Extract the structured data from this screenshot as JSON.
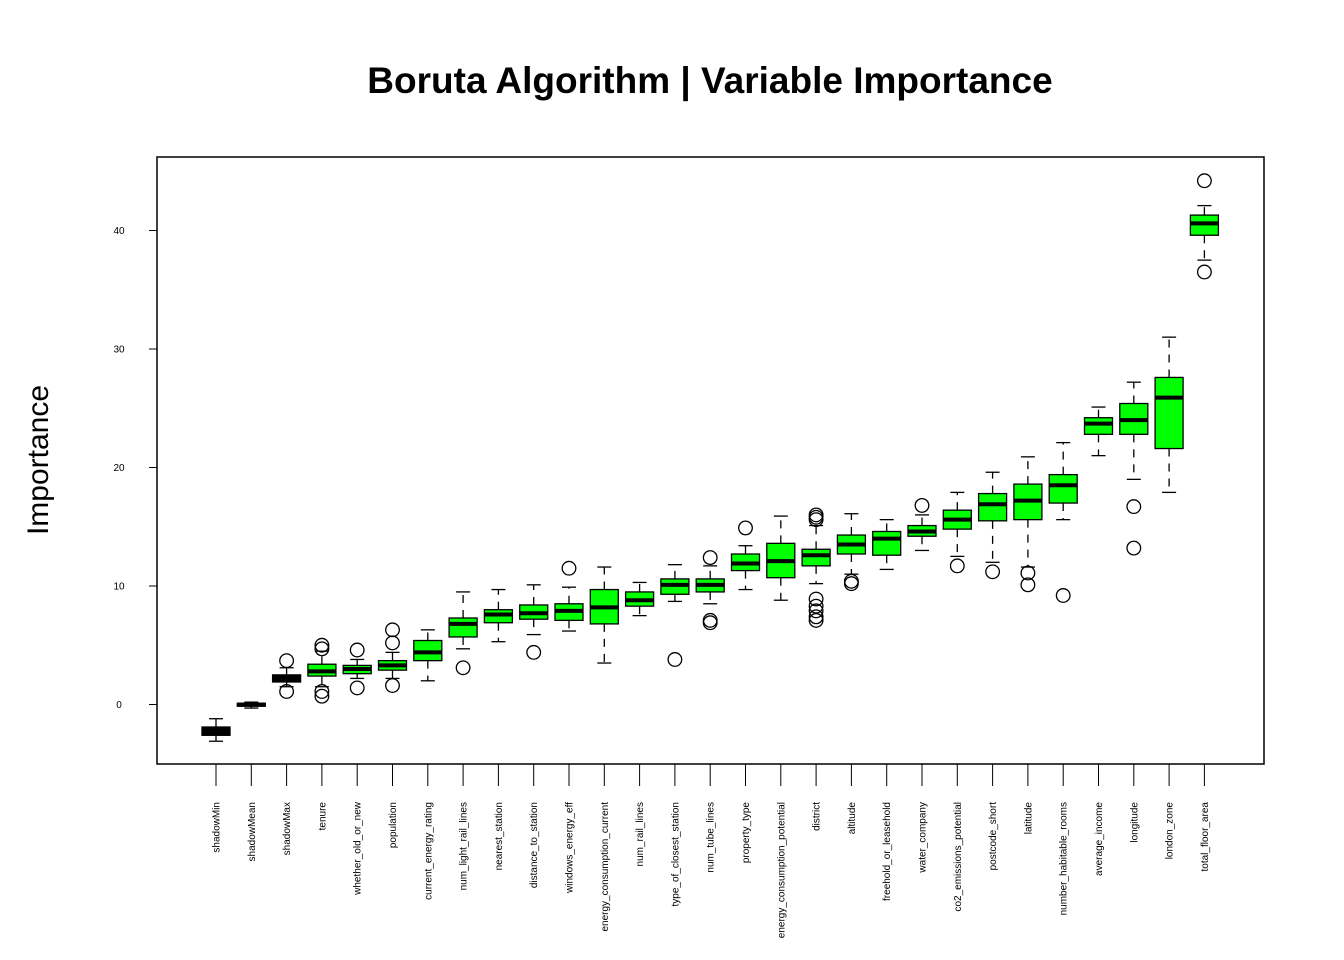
{
  "chart_data": {
    "type": "boxplot",
    "title": "Boruta Algorithm | Variable Importance",
    "xlabel": "",
    "ylabel": "Importance",
    "ylim": [
      -5,
      45
    ],
    "yticks": [
      0,
      10,
      20,
      30,
      40
    ],
    "grid": false,
    "legend": "none",
    "colors": {
      "confirmed": "#00ff00",
      "shadow": "#000000"
    },
    "boxes": [
      {
        "name": "shadowMin",
        "whisker_low": -3.1,
        "q1": -2.6,
        "median": -2.2,
        "q3": -1.9,
        "whisker_high": -1.2,
        "outliers": [],
        "kind": "shadow"
      },
      {
        "name": "shadowMean",
        "whisker_low": -0.3,
        "q1": -0.15,
        "median": 0.0,
        "q3": 0.1,
        "whisker_high": 0.2,
        "outliers": [],
        "kind": "shadow"
      },
      {
        "name": "shadowMax",
        "whisker_low": 1.5,
        "q1": 1.9,
        "median": 2.2,
        "q3": 2.5,
        "whisker_high": 3.1,
        "outliers": [
          3.7,
          1.1
        ],
        "kind": "shadow"
      },
      {
        "name": "tenure",
        "whisker_low": 1.5,
        "q1": 2.4,
        "median": 2.8,
        "q3": 3.4,
        "whisker_high": 4.5,
        "outliers": [
          5.0,
          4.7,
          1.1,
          0.7
        ],
        "kind": "confirmed"
      },
      {
        "name": "whether_old_or_new",
        "whisker_low": 2.2,
        "q1": 2.6,
        "median": 3.0,
        "q3": 3.3,
        "whisker_high": 3.8,
        "outliers": [
          4.6,
          1.4
        ],
        "kind": "confirmed"
      },
      {
        "name": "population",
        "whisker_low": 2.2,
        "q1": 2.9,
        "median": 3.3,
        "q3": 3.7,
        "whisker_high": 4.4,
        "outliers": [
          6.3,
          5.2,
          1.6
        ],
        "kind": "confirmed"
      },
      {
        "name": "current_energy_rating",
        "whisker_low": 2.0,
        "q1": 3.7,
        "median": 4.4,
        "q3": 5.4,
        "whisker_high": 6.3,
        "outliers": [],
        "kind": "confirmed"
      },
      {
        "name": "num_light_rail_lines",
        "whisker_low": 4.7,
        "q1": 5.7,
        "median": 6.8,
        "q3": 7.3,
        "whisker_high": 9.5,
        "outliers": [
          3.1
        ],
        "kind": "confirmed"
      },
      {
        "name": "nearest_station",
        "whisker_low": 5.3,
        "q1": 6.9,
        "median": 7.6,
        "q3": 8.0,
        "whisker_high": 9.7,
        "outliers": [],
        "kind": "confirmed"
      },
      {
        "name": "distance_to_station",
        "whisker_low": 5.9,
        "q1": 7.2,
        "median": 7.7,
        "q3": 8.4,
        "whisker_high": 10.1,
        "outliers": [
          4.4
        ],
        "kind": "confirmed"
      },
      {
        "name": "windows_energy_eff",
        "whisker_low": 6.2,
        "q1": 7.1,
        "median": 7.9,
        "q3": 8.5,
        "whisker_high": 9.9,
        "outliers": [
          11.5
        ],
        "kind": "confirmed"
      },
      {
        "name": "energy_consumption_current",
        "whisker_low": 3.5,
        "q1": 6.8,
        "median": 8.2,
        "q3": 9.7,
        "whisker_high": 11.6,
        "outliers": [],
        "kind": "confirmed"
      },
      {
        "name": "num_rail_lines",
        "whisker_low": 7.5,
        "q1": 8.3,
        "median": 8.8,
        "q3": 9.5,
        "whisker_high": 10.3,
        "outliers": [],
        "kind": "confirmed"
      },
      {
        "name": "type_of_closest_station",
        "whisker_low": 8.7,
        "q1": 9.3,
        "median": 10.1,
        "q3": 10.6,
        "whisker_high": 11.8,
        "outliers": [
          3.8
        ],
        "kind": "confirmed"
      },
      {
        "name": "num_tube_lines",
        "whisker_low": 8.5,
        "q1": 9.5,
        "median": 10.1,
        "q3": 10.6,
        "whisker_high": 11.7,
        "outliers": [
          12.4,
          7.1,
          6.9
        ],
        "kind": "confirmed"
      },
      {
        "name": "property_type",
        "whisker_low": 9.7,
        "q1": 11.3,
        "median": 11.9,
        "q3": 12.7,
        "whisker_high": 13.4,
        "outliers": [
          14.9
        ],
        "kind": "confirmed"
      },
      {
        "name": "energy_consumption_potential",
        "whisker_low": 8.8,
        "q1": 10.7,
        "median": 12.1,
        "q3": 13.6,
        "whisker_high": 15.9,
        "outliers": [],
        "kind": "confirmed"
      },
      {
        "name": "district",
        "whisker_low": 10.2,
        "q1": 11.7,
        "median": 12.6,
        "q3": 13.1,
        "whisker_high": 15.1,
        "outliers": [
          16.0,
          15.8,
          15.6,
          8.9,
          8.3,
          7.9,
          7.4,
          7.1
        ],
        "kind": "confirmed"
      },
      {
        "name": "altitude",
        "whisker_low": 11.0,
        "q1": 12.7,
        "median": 13.5,
        "q3": 14.3,
        "whisker_high": 16.1,
        "outliers": [
          10.4,
          10.2
        ],
        "kind": "confirmed"
      },
      {
        "name": "freehold_or_leasehold",
        "whisker_low": 11.4,
        "q1": 12.6,
        "median": 14.0,
        "q3": 14.6,
        "whisker_high": 15.6,
        "outliers": [],
        "kind": "confirmed"
      },
      {
        "name": "water_company",
        "whisker_low": 13.0,
        "q1": 14.2,
        "median": 14.6,
        "q3": 15.1,
        "whisker_high": 16.0,
        "outliers": [
          16.8
        ],
        "kind": "confirmed"
      },
      {
        "name": "co2_emissions_potential",
        "whisker_low": 12.5,
        "q1": 14.8,
        "median": 15.6,
        "q3": 16.4,
        "whisker_high": 17.9,
        "outliers": [
          11.7
        ],
        "kind": "confirmed"
      },
      {
        "name": "postcode_short",
        "whisker_low": 12.0,
        "q1": 15.5,
        "median": 16.9,
        "q3": 17.8,
        "whisker_high": 19.6,
        "outliers": [
          11.2
        ],
        "kind": "confirmed"
      },
      {
        "name": "latitude",
        "whisker_low": 11.6,
        "q1": 15.6,
        "median": 17.2,
        "q3": 18.6,
        "whisker_high": 20.9,
        "outliers": [
          11.1,
          10.1
        ],
        "kind": "confirmed"
      },
      {
        "name": "number_habitable_rooms",
        "whisker_low": 15.6,
        "q1": 17.0,
        "median": 18.5,
        "q3": 19.4,
        "whisker_high": 22.1,
        "outliers": [
          9.2
        ],
        "kind": "confirmed"
      },
      {
        "name": "average_income",
        "whisker_low": 21.0,
        "q1": 22.8,
        "median": 23.7,
        "q3": 24.2,
        "whisker_high": 25.1,
        "outliers": [],
        "kind": "confirmed"
      },
      {
        "name": "longitude",
        "whisker_low": 19.0,
        "q1": 22.8,
        "median": 24.0,
        "q3": 25.4,
        "whisker_high": 27.2,
        "outliers": [
          16.7,
          13.2
        ],
        "kind": "confirmed"
      },
      {
        "name": "london_zone",
        "whisker_low": 17.9,
        "q1": 21.6,
        "median": 25.9,
        "q3": 27.6,
        "whisker_high": 31.0,
        "outliers": [],
        "kind": "confirmed"
      },
      {
        "name": "total_floor_area",
        "whisker_low": 37.5,
        "q1": 39.6,
        "median": 40.6,
        "q3": 41.3,
        "whisker_high": 42.1,
        "outliers": [
          44.2,
          36.5
        ],
        "kind": "confirmed"
      }
    ]
  }
}
